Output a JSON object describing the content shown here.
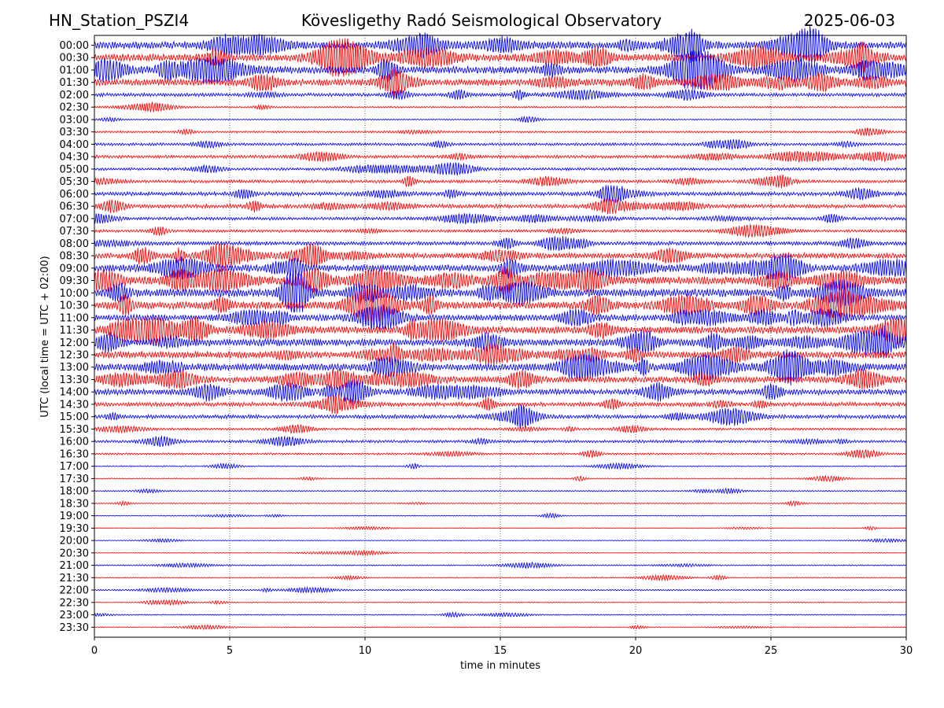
{
  "header": {
    "station": "HN_Station_PSZI4",
    "title": "Kövesligethy Radó Seismological Observatory",
    "date": "2025-06-03"
  },
  "chart_data": {
    "type": "line",
    "title": "Kövesligethy Radó Seismological Observatory",
    "xlabel": "time in minutes",
    "ylabel": "UTC (local time = UTC + 02:00)",
    "xlim": [
      0,
      30
    ],
    "xticks": [
      0,
      5,
      10,
      15,
      20,
      25,
      30
    ],
    "vertical_gridlines_dotted": [
      5,
      10,
      15,
      20,
      25
    ],
    "trace_colors": [
      "#0000ff",
      "#ff0000"
    ],
    "rows": [
      {
        "label": "00:00",
        "activity": 0.95
      },
      {
        "label": "00:30",
        "activity": 0.9
      },
      {
        "label": "01:00",
        "activity": 0.95
      },
      {
        "label": "01:30",
        "activity": 0.85
      },
      {
        "label": "02:00",
        "activity": 0.4
      },
      {
        "label": "02:30",
        "activity": 0.15
      },
      {
        "label": "03:00",
        "activity": 0.1
      },
      {
        "label": "03:30",
        "activity": 0.2
      },
      {
        "label": "04:00",
        "activity": 0.3
      },
      {
        "label": "04:30",
        "activity": 0.35
      },
      {
        "label": "05:00",
        "activity": 0.3
      },
      {
        "label": "05:30",
        "activity": 0.35
      },
      {
        "label": "06:00",
        "activity": 0.45
      },
      {
        "label": "06:30",
        "activity": 0.45
      },
      {
        "label": "07:00",
        "activity": 0.35
      },
      {
        "label": "07:30",
        "activity": 0.3
      },
      {
        "label": "08:00",
        "activity": 0.45
      },
      {
        "label": "08:30",
        "activity": 0.65
      },
      {
        "label": "09:00",
        "activity": 0.85
      },
      {
        "label": "09:30",
        "activity": 1.0
      },
      {
        "label": "10:00",
        "activity": 1.0
      },
      {
        "label": "10:30",
        "activity": 0.95
      },
      {
        "label": "11:00",
        "activity": 0.75
      },
      {
        "label": "11:30",
        "activity": 0.9
      },
      {
        "label": "12:00",
        "activity": 0.9
      },
      {
        "label": "12:30",
        "activity": 0.85
      },
      {
        "label": "13:00",
        "activity": 0.9
      },
      {
        "label": "13:30",
        "activity": 0.8
      },
      {
        "label": "14:00",
        "activity": 0.7
      },
      {
        "label": "14:30",
        "activity": 0.5
      },
      {
        "label": "15:00",
        "activity": 0.45
      },
      {
        "label": "15:30",
        "activity": 0.25
      },
      {
        "label": "16:00",
        "activity": 0.3
      },
      {
        "label": "16:30",
        "activity": 0.2
      },
      {
        "label": "17:00",
        "activity": 0.1
      },
      {
        "label": "17:30",
        "activity": 0.08
      },
      {
        "label": "18:00",
        "activity": 0.1
      },
      {
        "label": "18:30",
        "activity": 0.07
      },
      {
        "label": "19:00",
        "activity": 0.05
      },
      {
        "label": "19:30",
        "activity": 0.05
      },
      {
        "label": "20:00",
        "activity": 0.04
      },
      {
        "label": "20:30",
        "activity": 0.04
      },
      {
        "label": "21:00",
        "activity": 0.1
      },
      {
        "label": "21:30",
        "activity": 0.08
      },
      {
        "label": "22:00",
        "activity": 0.12
      },
      {
        "label": "22:30",
        "activity": 0.06
      },
      {
        "label": "23:00",
        "activity": 0.08
      },
      {
        "label": "23:30",
        "activity": 0.06
      }
    ]
  }
}
